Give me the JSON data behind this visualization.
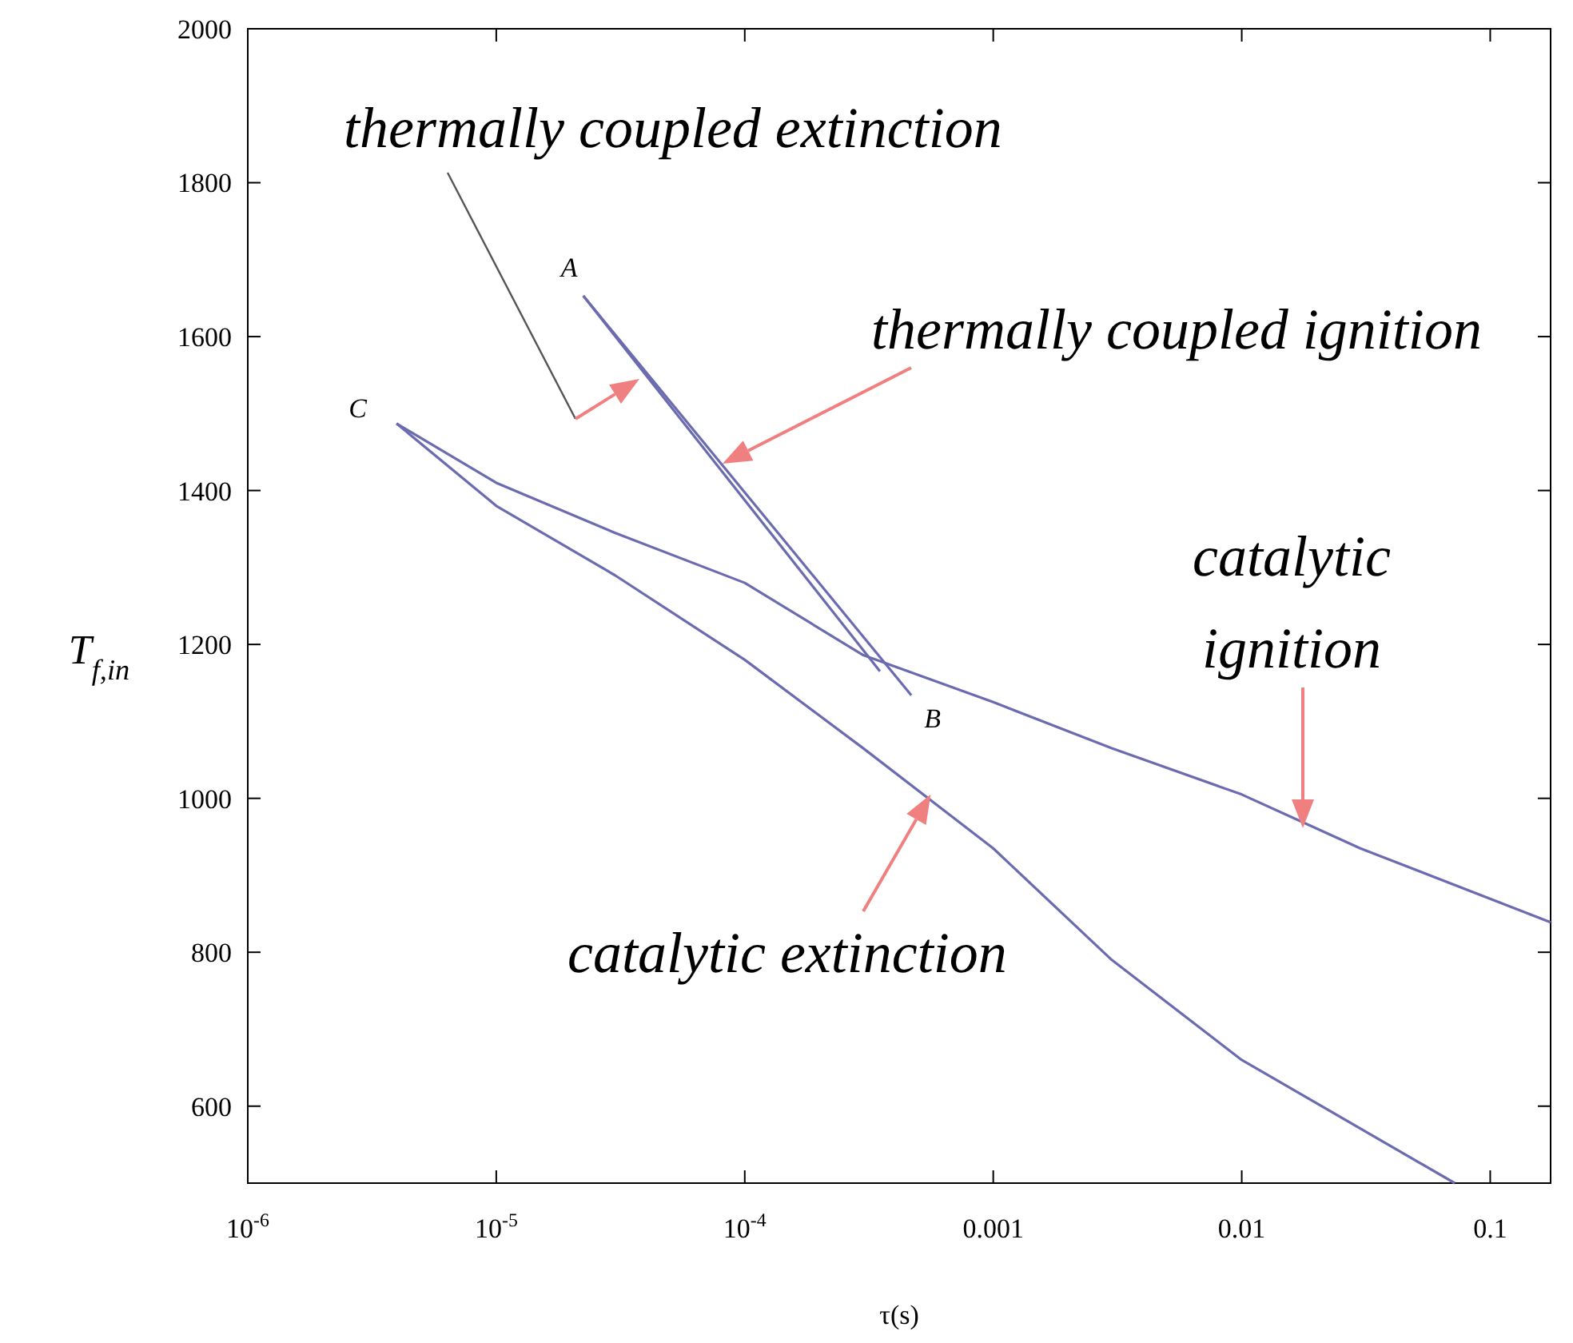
{
  "chart_data": {
    "type": "line",
    "xlabel": "τ(s)",
    "ylabel": "T$_{f,in}$",
    "log": "x",
    "xlim": [
      1e-06,
      0.175
    ],
    "xticks": [
      {
        "value": 1e-06,
        "label": "10$^{-6}$"
      },
      {
        "value": 1e-05,
        "label": "10$^{-5}$"
      },
      {
        "value": 0.0001,
        "label": "10$^{-4}$"
      },
      0.001,
      0.01,
      0.1
    ],
    "ylim": [
      500,
      2000
    ],
    "yticks": [
      600,
      800,
      1000,
      1200,
      1400,
      1600,
      1800,
      2000
    ],
    "grid": false,
    "marker": "none",
    "line_style": "solid",
    "series": [
      {
        "color": "#6b6bb0",
        "x": [
          3.97e-06,
          1e-05,
          3e-05,
          0.0001,
          0.0003,
          0.001,
          0.003,
          0.01,
          0.03,
          0.175
        ],
        "values": [
          1487,
          1410,
          1345,
          1280,
          1186,
          1125,
          1065,
          1005,
          935,
          839
        ]
      },
      {
        "color": "#6b6bb0",
        "x": [
          3.97e-06,
          1e-05,
          3e-05,
          0.0001,
          0.0003,
          0.001,
          0.003,
          0.01,
          0.072
        ],
        "values": [
          1487,
          1380,
          1290,
          1180,
          1065,
          935,
          790,
          660,
          500
        ]
      },
      {
        "color": "#6b6bb0",
        "x": [
          2.24e-05,
          0.000468
        ],
        "values": [
          1653,
          1134
        ]
      },
      {
        "color": "#6b6bb0",
        "x": [
          2.24e-05,
          0.00035
        ],
        "values": [
          1653,
          1165
        ]
      }
    ],
    "annotations": [
      "thermally coupled extinction",
      "thermally coupled ignition",
      "catalytic ignition",
      {
        "text": "catalytic extinction",
        "x": 0.00056,
        "y": 1005
      },
      {
        "text": "A",
        "x": 2.24e-05,
        "y": 1653
      },
      {
        "text": "B",
        "x": 0.000468,
        "y": 1134
      },
      {
        "text": "C",
        "x": 3.97e-06,
        "y": 1487
      }
    ]
  }
}
